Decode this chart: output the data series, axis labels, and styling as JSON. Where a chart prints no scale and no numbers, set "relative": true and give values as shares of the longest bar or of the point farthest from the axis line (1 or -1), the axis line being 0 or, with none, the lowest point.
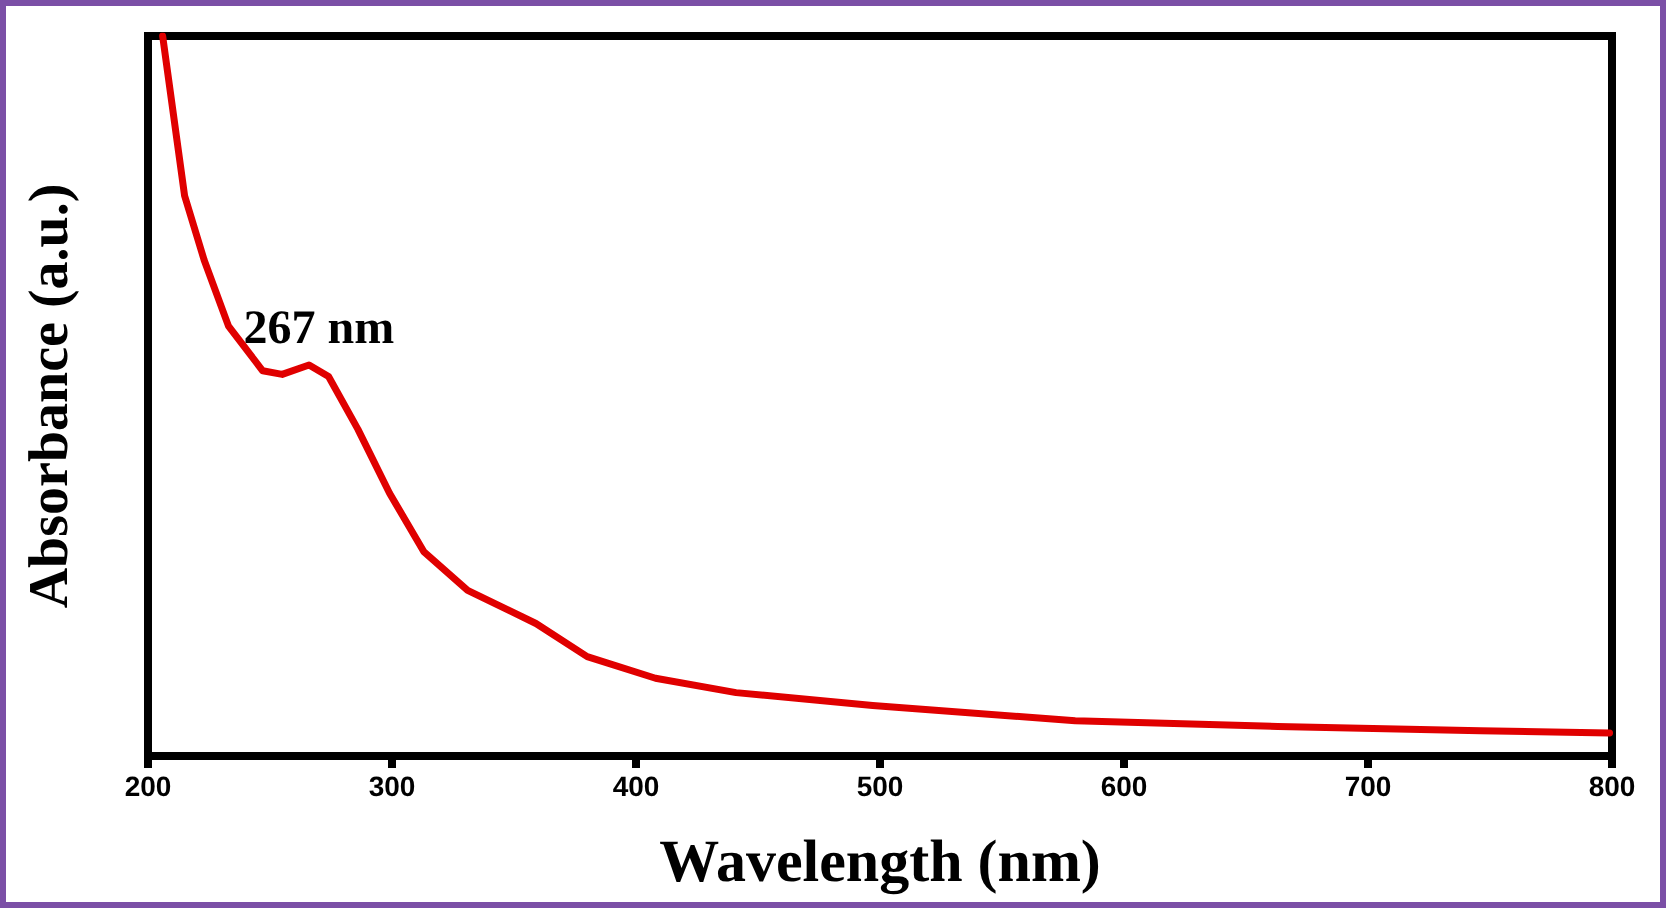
{
  "chart_data": {
    "type": "line",
    "xlabel": "Wavelength (nm)",
    "ylabel": "Absorbance (a.u.)",
    "relative": true,
    "xlim": [
      200,
      800
    ],
    "xticks": [
      200,
      300,
      400,
      500,
      600,
      700,
      800
    ],
    "marker": "none",
    "line_style": "solid",
    "grid": false,
    "annotations": [
      {
        "text": "267 nm",
        "x": 267,
        "y": 0.543
      }
    ],
    "series": [
      {
        "color": "#e00000",
        "x": [
          206,
          215,
          223,
          233,
          247,
          255,
          266,
          274,
          286,
          299,
          313,
          331,
          359,
          380,
          408,
          441,
          497,
          580,
          663,
          746,
          799
        ],
        "values": [
          1.0,
          0.778,
          0.689,
          0.597,
          0.535,
          0.53,
          0.543,
          0.527,
          0.454,
          0.365,
          0.284,
          0.23,
          0.184,
          0.138,
          0.108,
          0.088,
          0.07,
          0.049,
          0.041,
          0.035,
          0.032
        ]
      }
    ]
  }
}
